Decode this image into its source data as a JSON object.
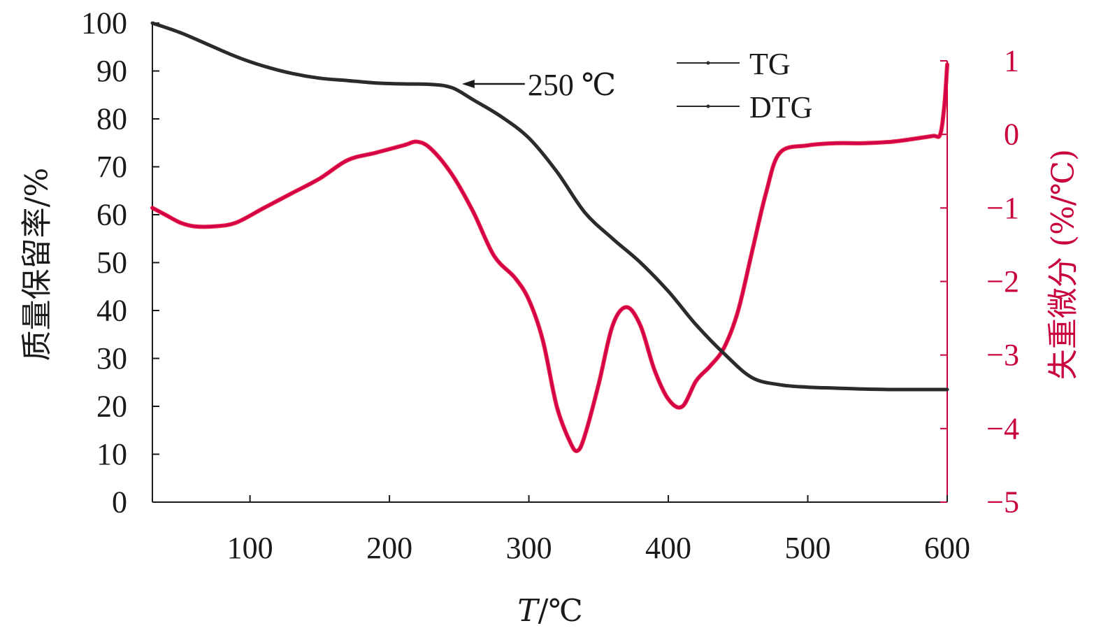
{
  "chart_data": {
    "type": "line",
    "xlabel": "T/℃",
    "xlabel_italic": "T",
    "xlabel_unit": "/℃",
    "ylabel": "质量保留率/%",
    "y2label": "失重微分 (%/℃)",
    "xlim": [
      30,
      600
    ],
    "ylim": [
      0,
      100
    ],
    "y2lim": [
      -5,
      1
    ],
    "xticks": [
      100,
      200,
      300,
      400,
      500,
      600
    ],
    "yticks": [
      0,
      10,
      20,
      30,
      40,
      50,
      60,
      70,
      80,
      90,
      100
    ],
    "y2ticks": [
      -5,
      -4,
      -3,
      -2,
      -1,
      0,
      1
    ],
    "y2tick_labels": [
      "−5",
      "−4",
      "−3",
      "−2",
      "−1",
      "0",
      "1"
    ],
    "legend_position": "top-right",
    "colors": {
      "TG": "#2b2b2b",
      "DTG": "#d4004a",
      "right_axis": "#c8003c"
    },
    "annotation": {
      "text": "250 ℃",
      "x": 250,
      "y": 87
    },
    "series": [
      {
        "name": "TG",
        "axis": "left",
        "x": [
          30,
          50,
          70,
          90,
          110,
          130,
          150,
          170,
          190,
          210,
          230,
          245,
          260,
          280,
          300,
          320,
          340,
          360,
          380,
          400,
          420,
          440,
          460,
          480,
          500,
          520,
          540,
          560,
          580,
          600
        ],
        "y": [
          100,
          98,
          95.5,
          93,
          91,
          89.5,
          88.5,
          88,
          87.5,
          87.3,
          87.2,
          86.5,
          84,
          80.5,
          76,
          69,
          60.5,
          55,
          50,
          44,
          37,
          31,
          26,
          24.5,
          24,
          23.8,
          23.6,
          23.5,
          23.5,
          23.5
        ]
      },
      {
        "name": "DTG",
        "axis": "right",
        "x": [
          30,
          40,
          50,
          60,
          75,
          90,
          110,
          130,
          150,
          170,
          190,
          210,
          220,
          230,
          245,
          260,
          275,
          290,
          300,
          310,
          320,
          330,
          335,
          340,
          350,
          360,
          370,
          380,
          390,
          400,
          410,
          420,
          430,
          440,
          450,
          460,
          470,
          480,
          500,
          520,
          540,
          560,
          580,
          590,
          595,
          598,
          600
        ],
        "y": [
          -1.0,
          -1.1,
          -1.2,
          -1.25,
          -1.25,
          -1.2,
          -1.0,
          -0.8,
          -0.6,
          -0.35,
          -0.25,
          -0.15,
          -0.1,
          -0.2,
          -0.55,
          -1.05,
          -1.65,
          -1.95,
          -2.25,
          -2.8,
          -3.7,
          -4.2,
          -4.3,
          -4.1,
          -3.4,
          -2.6,
          -2.35,
          -2.6,
          -3.2,
          -3.6,
          -3.7,
          -3.35,
          -3.15,
          -2.9,
          -2.4,
          -1.6,
          -0.8,
          -0.25,
          -0.15,
          -0.12,
          -0.12,
          -0.1,
          -0.05,
          -0.02,
          0.0,
          0.4,
          0.95
        ]
      }
    ]
  }
}
